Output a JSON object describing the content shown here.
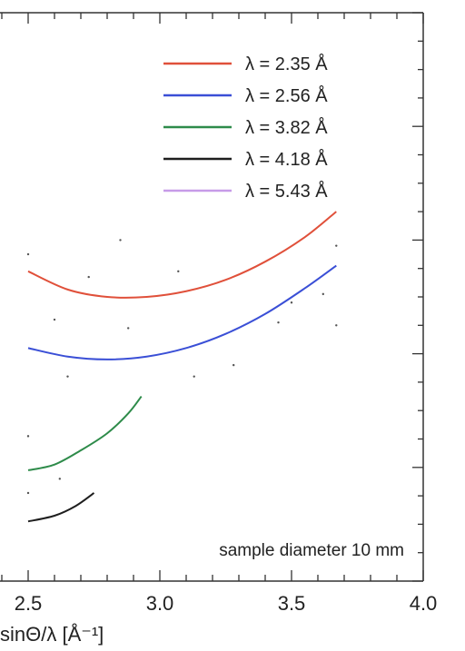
{
  "chart_data": {
    "type": "line",
    "xlabel": "sinΘ/λ [Å⁻¹]",
    "ylabel": "",
    "xlim": [
      2.5,
      4.0
    ],
    "xticks": [
      {
        "value": 2.5,
        "label": "2.5"
      },
      {
        "value": 3.0,
        "label": "3.0"
      },
      {
        "value": 3.5,
        "label": "3.5"
      },
      {
        "value": 4.0,
        "label": "4.0"
      }
    ],
    "ylim": [
      0,
      10
    ],
    "legend_position": "top-right",
    "grid": false,
    "annotation": "sample diameter 10 mm",
    "series": [
      {
        "name": "λ = 2.35 Å",
        "color": "#e0503a",
        "x": [
          2.5,
          2.65,
          2.8,
          2.95,
          3.1,
          3.25,
          3.4,
          3.55,
          3.67
        ],
        "y": [
          5.45,
          5.13,
          5.0,
          5.0,
          5.1,
          5.3,
          5.62,
          6.05,
          6.5
        ]
      },
      {
        "name": "λ = 2.56 Å",
        "color": "#3a4fd6",
        "x": [
          2.5,
          2.65,
          2.8,
          2.95,
          3.1,
          3.25,
          3.4,
          3.55,
          3.67
        ],
        "y": [
          4.1,
          3.95,
          3.9,
          3.95,
          4.1,
          4.35,
          4.7,
          5.15,
          5.55
        ]
      },
      {
        "name": "λ = 3.82 Å",
        "color": "#2e8b4a",
        "x": [
          2.5,
          2.6,
          2.7,
          2.8,
          2.88,
          2.93
        ],
        "y": [
          1.95,
          2.05,
          2.3,
          2.6,
          2.95,
          3.25
        ]
      },
      {
        "name": "λ = 4.18 Å",
        "color": "#1e1e1e",
        "x": [
          2.5,
          2.6,
          2.68,
          2.75
        ],
        "y": [
          1.05,
          1.15,
          1.32,
          1.55
        ]
      },
      {
        "name": "λ = 5.43 Å",
        "color": "#c79be8",
        "x": [],
        "y": []
      }
    ],
    "scatter_points": [
      {
        "x": 2.5,
        "y": 5.75
      },
      {
        "x": 2.6,
        "y": 4.6
      },
      {
        "x": 2.65,
        "y": 3.6
      },
      {
        "x": 2.73,
        "y": 5.35
      },
      {
        "x": 2.85,
        "y": 6.0
      },
      {
        "x": 2.88,
        "y": 4.45
      },
      {
        "x": 3.07,
        "y": 5.45
      },
      {
        "x": 3.13,
        "y": 3.6
      },
      {
        "x": 3.28,
        "y": 3.8
      },
      {
        "x": 3.45,
        "y": 4.55
      },
      {
        "x": 3.5,
        "y": 4.9
      },
      {
        "x": 3.62,
        "y": 5.05
      },
      {
        "x": 3.67,
        "y": 5.9
      },
      {
        "x": 3.67,
        "y": 4.5
      },
      {
        "x": 2.5,
        "y": 2.55
      },
      {
        "x": 2.62,
        "y": 1.8
      },
      {
        "x": 2.5,
        "y": 1.55
      }
    ]
  }
}
